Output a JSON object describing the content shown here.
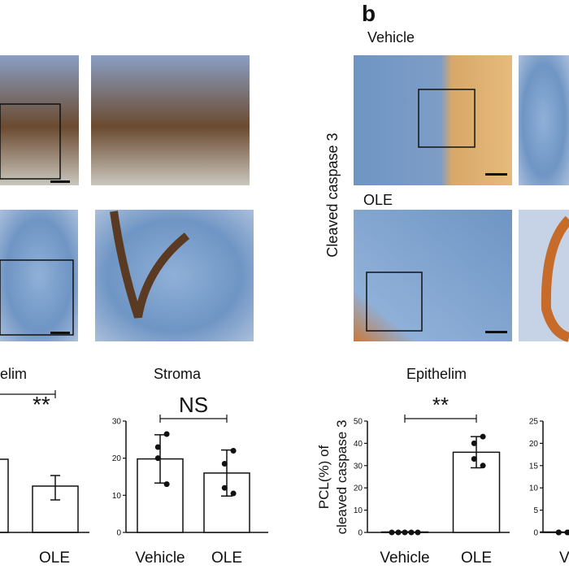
{
  "panel_label": "b",
  "image_labels": {
    "vehicle": "Vehicle",
    "ole": "OLE",
    "stain": "Cleaved caspase 3"
  },
  "left_partial": {
    "title": "elim",
    "significance": "**",
    "category": "OLE"
  },
  "chart_data": [
    {
      "type": "bar",
      "title": "Stroma",
      "categories": [
        "Vehicle",
        "OLE"
      ],
      "values": [
        19.8,
        16
      ],
      "errors": [
        6.5,
        6.2
      ],
      "points": [
        [
          26.5,
          23,
          20,
          13
        ],
        [
          22,
          18.5,
          12,
          10.5
        ]
      ],
      "ylim": [
        0,
        30
      ],
      "yticks": [
        0,
        10,
        20,
        30
      ],
      "significance": "NS",
      "color": "#ffffff"
    },
    {
      "type": "bar",
      "title": "Epithelim",
      "ylabel": [
        "PCL(%) of",
        "cleaved caspase 3"
      ],
      "categories": [
        "Vehicle",
        "OLE"
      ],
      "values": [
        0.2,
        36
      ],
      "errors": [
        0.1,
        7
      ],
      "points": [
        [
          0,
          0,
          0,
          0,
          0
        ],
        [
          43,
          40,
          33,
          30
        ]
      ],
      "ylim": [
        0,
        50
      ],
      "yticks": [
        0,
        10,
        20,
        30,
        40,
        50
      ],
      "significance": "**",
      "color": "#ffffff"
    },
    {
      "type": "bar",
      "categories": [
        "Ve"
      ],
      "values": [
        0.1
      ],
      "points": [
        [
          0,
          0,
          0,
          0
        ]
      ],
      "ylim": [
        0,
        25
      ],
      "yticks": [
        0,
        5,
        10,
        15,
        20,
        25
      ],
      "color": "#ffffff"
    }
  ]
}
